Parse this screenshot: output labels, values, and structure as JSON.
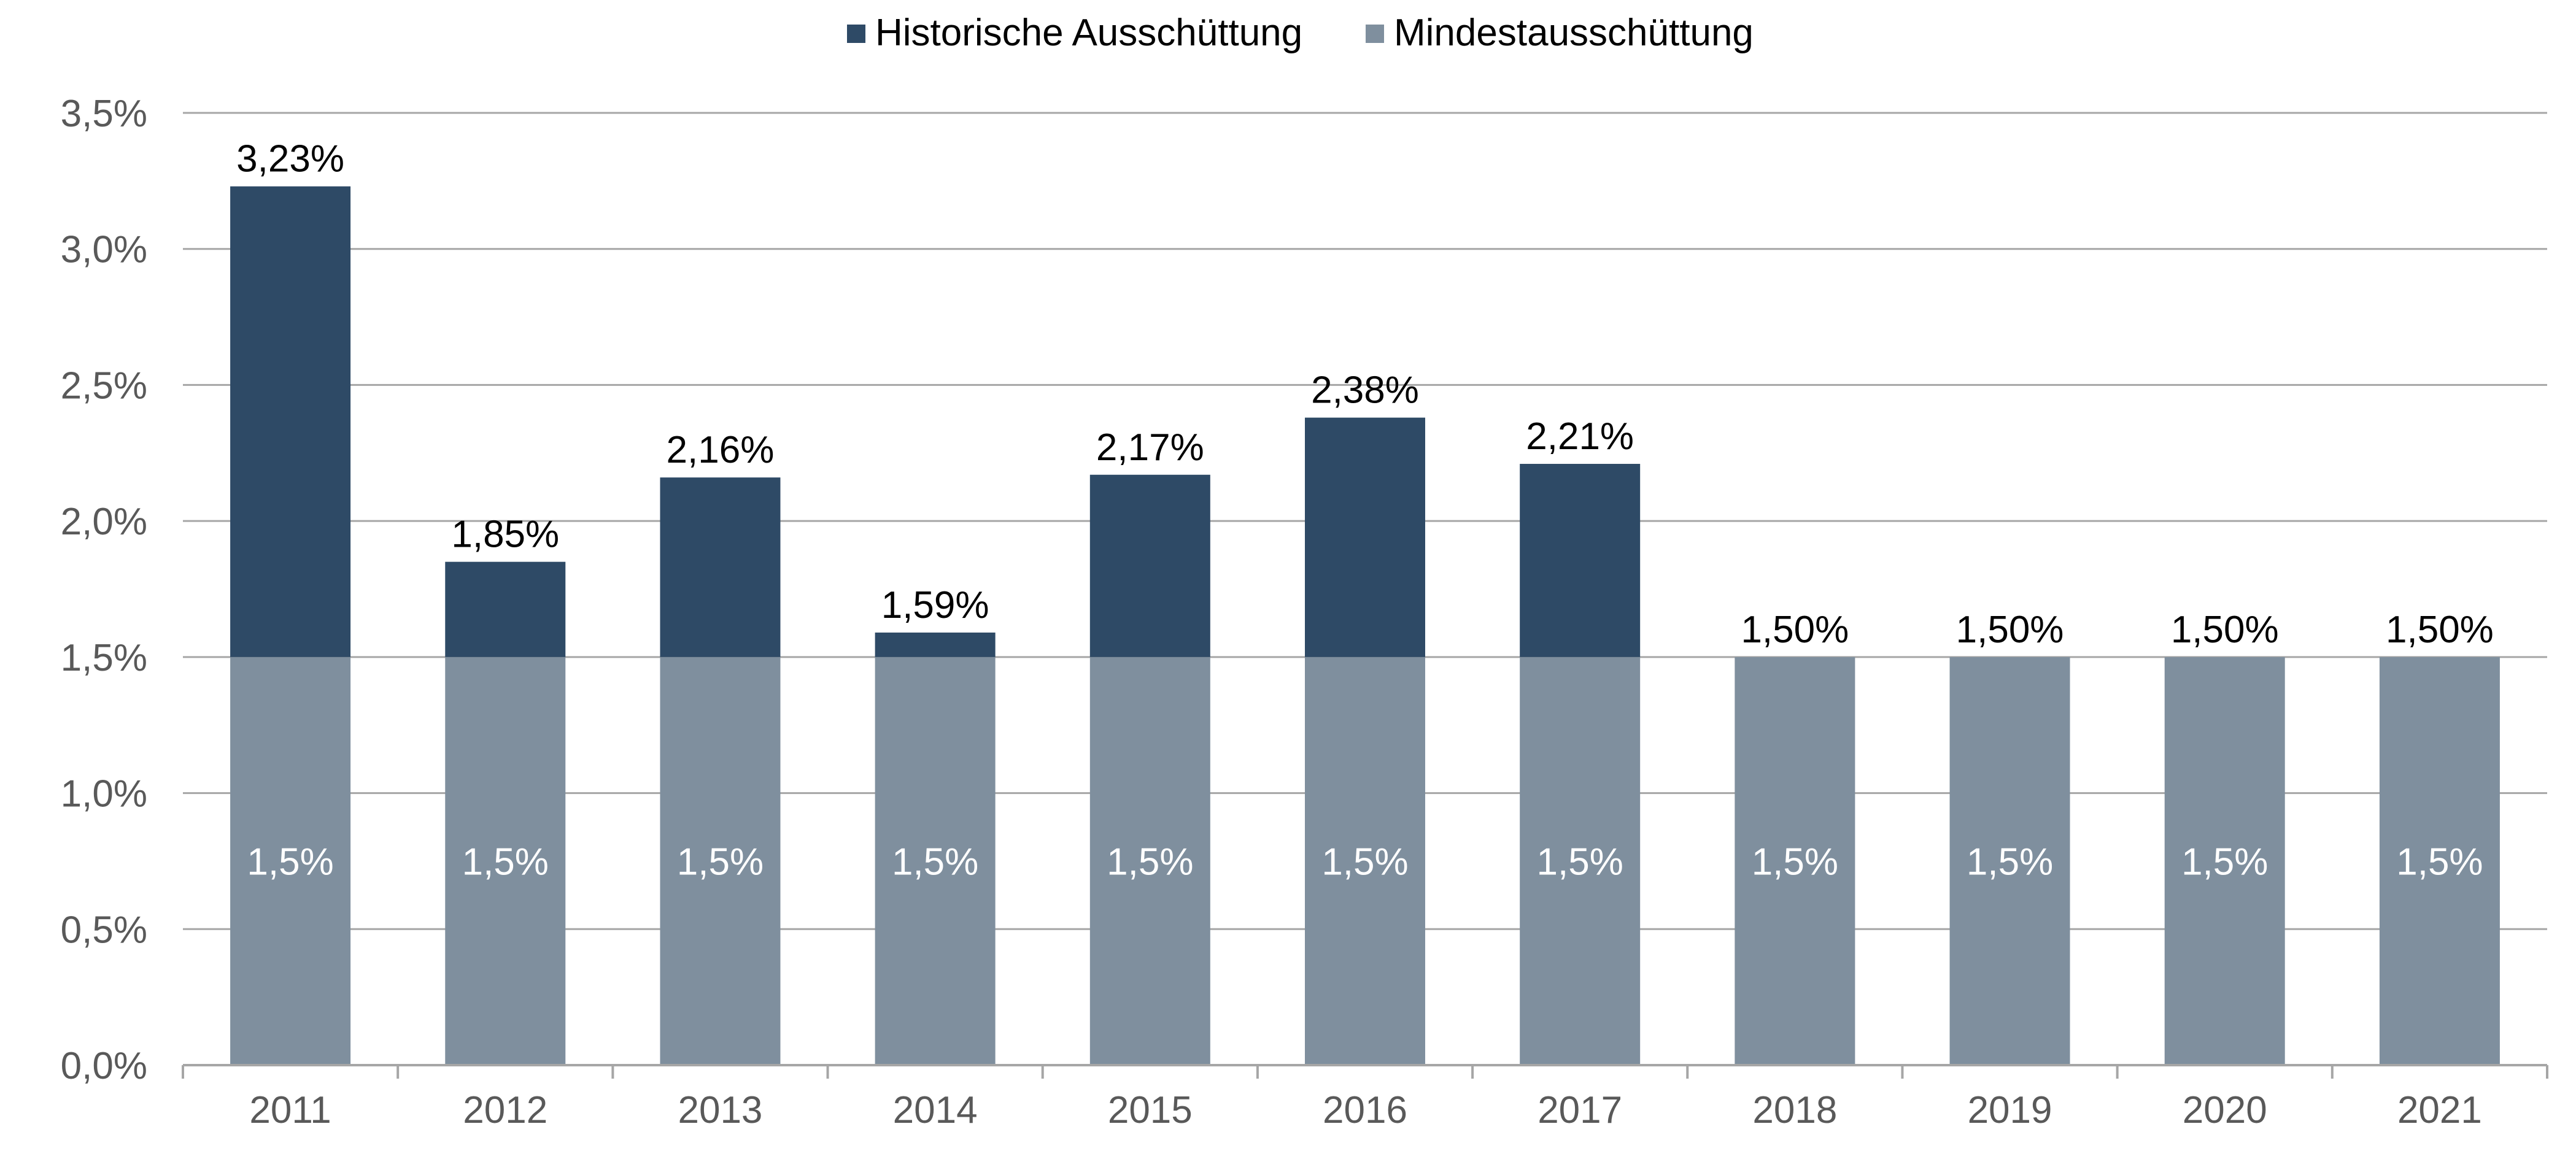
{
  "chart_data": {
    "type": "bar",
    "stacked": true,
    "categories": [
      "2011",
      "2012",
      "2013",
      "2014",
      "2015",
      "2016",
      "2017",
      "2018",
      "2019",
      "2020",
      "2021"
    ],
    "series": [
      {
        "name": "Mindestausschüttung",
        "color": "#7f8f9e",
        "values": [
          1.5,
          1.5,
          1.5,
          1.5,
          1.5,
          1.5,
          1.5,
          1.5,
          1.5,
          1.5,
          1.5
        ],
        "labels": [
          "1,5%",
          "1,5%",
          "1,5%",
          "1,5%",
          "1,5%",
          "1,5%",
          "1,5%",
          "1,5%",
          "1,5%",
          "1,5%",
          "1,5%"
        ]
      },
      {
        "name": "Historische Ausschüttung",
        "color": "#2e4a66",
        "values": [
          1.73,
          0.35,
          0.66,
          0.09,
          0.67,
          0.88,
          0.71,
          0,
          0,
          0,
          0
        ]
      }
    ],
    "totals": [
      3.23,
      1.85,
      2.16,
      1.59,
      2.17,
      2.38,
      2.21,
      1.5,
      1.5,
      1.5,
      1.5
    ],
    "total_labels": [
      "3,23%",
      "1,85%",
      "2,16%",
      "1,59%",
      "2,17%",
      "2,38%",
      "2,21%",
      "1,50%",
      "1,50%",
      "1,50%",
      "1,50%"
    ],
    "legend": {
      "position": "top-center",
      "items": [
        {
          "label": "Historische Ausschüttung",
          "color": "#2e4a66"
        },
        {
          "label": "Mindestausschüttung",
          "color": "#7f8f9e"
        }
      ]
    },
    "yaxis": {
      "ylim": [
        0,
        3.5
      ],
      "ticks": [
        0,
        0.5,
        1.0,
        1.5,
        2.0,
        2.5,
        3.0,
        3.5
      ],
      "tick_labels": [
        "0,0%",
        "0,5%",
        "1,0%",
        "1,5%",
        "2,0%",
        "2,5%",
        "3,0%",
        "3,5%"
      ]
    },
    "grid": true,
    "title": "",
    "xlabel": "",
    "ylabel": ""
  }
}
